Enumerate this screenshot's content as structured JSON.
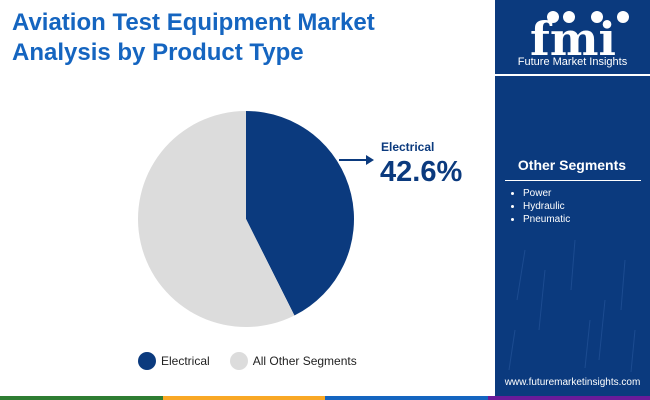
{
  "header": {
    "title_line1": "Aviation Test Equipment Market",
    "title_line2": "Analysis by Product Type"
  },
  "brand": {
    "logo_text": "fmi",
    "name": "Future Market Insights",
    "url": "www.futuremarketinsights.com"
  },
  "side_panel": {
    "heading": "Other Segments",
    "items": [
      "Power",
      "Hydraulic",
      "Pneumatic"
    ]
  },
  "callout": {
    "label": "Electrical",
    "value": "42.6%"
  },
  "colors": {
    "title": "#1565c0",
    "panel": "#0b3a7e",
    "electrical": "#0b3a7e",
    "other": "#dcdcdc",
    "bottom_bar": [
      "#2e7d32",
      "#f9a825",
      "#1565c0",
      "#6a1b9a"
    ]
  },
  "chart_data": {
    "type": "pie",
    "labels": [
      "Electrical",
      "All Other Segments"
    ],
    "values": [
      42.6,
      57.4
    ],
    "colors": [
      "#0b3a7e",
      "#dcdcdc"
    ],
    "start_angle": "12 o'clock, clockwise",
    "legend_position": "bottom"
  }
}
